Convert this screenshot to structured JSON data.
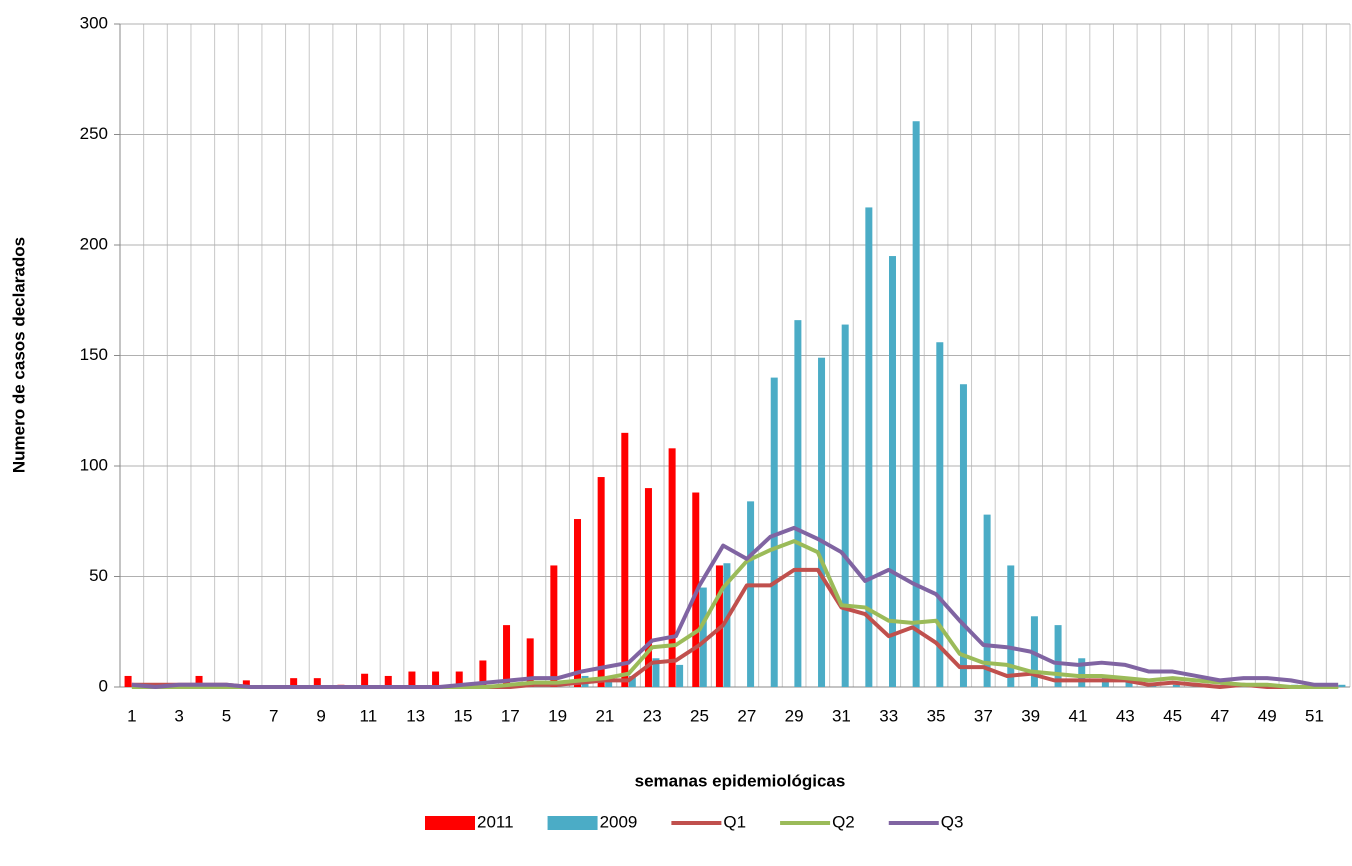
{
  "chart_data": {
    "type": "combo",
    "x_label": "semanas epidemiológicas",
    "y_label": "Numero de casos declarados",
    "categories": [
      "1",
      null,
      "3",
      null,
      "5",
      null,
      "7",
      null,
      "9",
      null,
      "11",
      null,
      "13",
      null,
      "15",
      null,
      "17",
      null,
      "19",
      null,
      "21",
      null,
      "23",
      null,
      "25",
      null,
      "27",
      null,
      "29",
      null,
      "31",
      null,
      "33",
      null,
      "35",
      null,
      "37",
      null,
      "39",
      null,
      "41",
      null,
      "43",
      null,
      "45",
      null,
      "47",
      null,
      "49",
      null,
      "51",
      null
    ],
    "ylim": [
      0,
      300
    ],
    "yticks": [
      0,
      50,
      100,
      150,
      200,
      250,
      300
    ],
    "grid": true,
    "series": [
      {
        "name": "2011",
        "type": "bar",
        "color": "#ff0000",
        "values": [
          5,
          0,
          0,
          5,
          0,
          3,
          0,
          4,
          4,
          1,
          6,
          5,
          7,
          7,
          7,
          12,
          28,
          22,
          55,
          76,
          95,
          115,
          90,
          108,
          88,
          55,
          null,
          null,
          null,
          null,
          null,
          null,
          null,
          null,
          null,
          null,
          null,
          null,
          null,
          null,
          null,
          null,
          null,
          null,
          null,
          null,
          null,
          null,
          null,
          null,
          null,
          null
        ]
      },
      {
        "name": "2009",
        "type": "bar",
        "color": "#4bacc6",
        "values": [
          0,
          0,
          0,
          0,
          0,
          0,
          0,
          0,
          0,
          0,
          0,
          0,
          0,
          0,
          0,
          0,
          0,
          0,
          0,
          5,
          3,
          5,
          13,
          10,
          45,
          56,
          84,
          140,
          166,
          149,
          164,
          217,
          195,
          256,
          156,
          137,
          78,
          55,
          32,
          28,
          13,
          5,
          3,
          1,
          1,
          1,
          1,
          1,
          1,
          1,
          1,
          1
        ]
      },
      {
        "name": "Q1",
        "type": "line",
        "color": "#c0504d",
        "values": [
          1,
          1,
          1,
          1,
          1,
          0,
          0,
          0,
          0,
          0,
          0,
          0,
          0,
          0,
          0,
          0,
          0,
          1,
          1,
          2,
          3,
          3,
          11,
          12,
          19,
          28,
          46,
          46,
          53,
          53,
          36,
          33,
          23,
          27,
          20,
          9,
          9,
          5,
          6,
          3,
          3,
          3,
          3,
          1,
          2,
          1,
          0,
          1,
          0,
          0,
          0,
          0
        ]
      },
      {
        "name": "Q2",
        "type": "line",
        "color": "#9bbb59",
        "values": [
          0,
          0,
          0,
          0,
          0,
          0,
          0,
          0,
          0,
          0,
          0,
          0,
          0,
          0,
          0,
          0,
          1,
          2,
          2,
          3,
          4,
          6,
          18,
          19,
          26,
          45,
          57,
          62,
          66,
          61,
          37,
          36,
          30,
          29,
          30,
          15,
          11,
          10,
          7,
          6,
          5,
          5,
          4,
          3,
          4,
          3,
          2,
          1,
          1,
          0,
          0,
          0
        ]
      },
      {
        "name": "Q3",
        "type": "line",
        "color": "#8064a2",
        "values": [
          1,
          0,
          1,
          1,
          1,
          0,
          0,
          0,
          0,
          0,
          0,
          0,
          0,
          0,
          1,
          2,
          3,
          4,
          4,
          7,
          9,
          11,
          21,
          23,
          46,
          64,
          58,
          68,
          72,
          67,
          61,
          48,
          53,
          47,
          42,
          30,
          19,
          18,
          16,
          11,
          10,
          11,
          10,
          7,
          7,
          5,
          3,
          4,
          4,
          3,
          1,
          1
        ]
      }
    ]
  }
}
